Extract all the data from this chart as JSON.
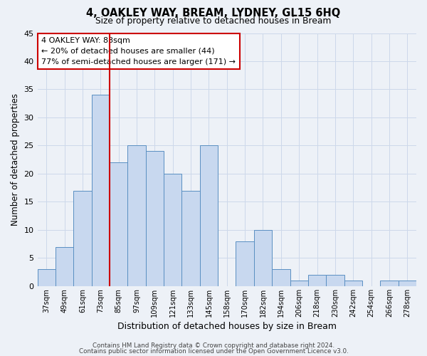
{
  "title": "4, OAKLEY WAY, BREAM, LYDNEY, GL15 6HQ",
  "subtitle": "Size of property relative to detached houses in Bream",
  "xlabel": "Distribution of detached houses by size in Bream",
  "ylabel": "Number of detached properties",
  "bar_labels": [
    "37sqm",
    "49sqm",
    "61sqm",
    "73sqm",
    "85sqm",
    "97sqm",
    "109sqm",
    "121sqm",
    "133sqm",
    "145sqm",
    "158sqm",
    "170sqm",
    "182sqm",
    "194sqm",
    "206sqm",
    "218sqm",
    "230sqm",
    "242sqm",
    "254sqm",
    "266sqm",
    "278sqm"
  ],
  "bar_values": [
    3,
    7,
    17,
    34,
    22,
    25,
    24,
    20,
    17,
    25,
    0,
    8,
    10,
    3,
    1,
    2,
    2,
    1,
    0,
    1,
    1
  ],
  "bar_color": "#c8d8ef",
  "bar_edge_color": "#5a8fc2",
  "vline_x_idx": 3.5,
  "vline_color": "#cc0000",
  "ylim": [
    0,
    45
  ],
  "annotation_title": "4 OAKLEY WAY: 83sqm",
  "annotation_line1": "← 20% of detached houses are smaller (44)",
  "annotation_line2": "77% of semi-detached houses are larger (171) →",
  "annotation_box_color": "#ffffff",
  "annotation_box_edge": "#cc0000",
  "grid_color": "#cdd8ea",
  "bg_color": "#edf1f7",
  "footer1": "Contains HM Land Registry data © Crown copyright and database right 2024.",
  "footer2": "Contains public sector information licensed under the Open Government Licence v3.0."
}
